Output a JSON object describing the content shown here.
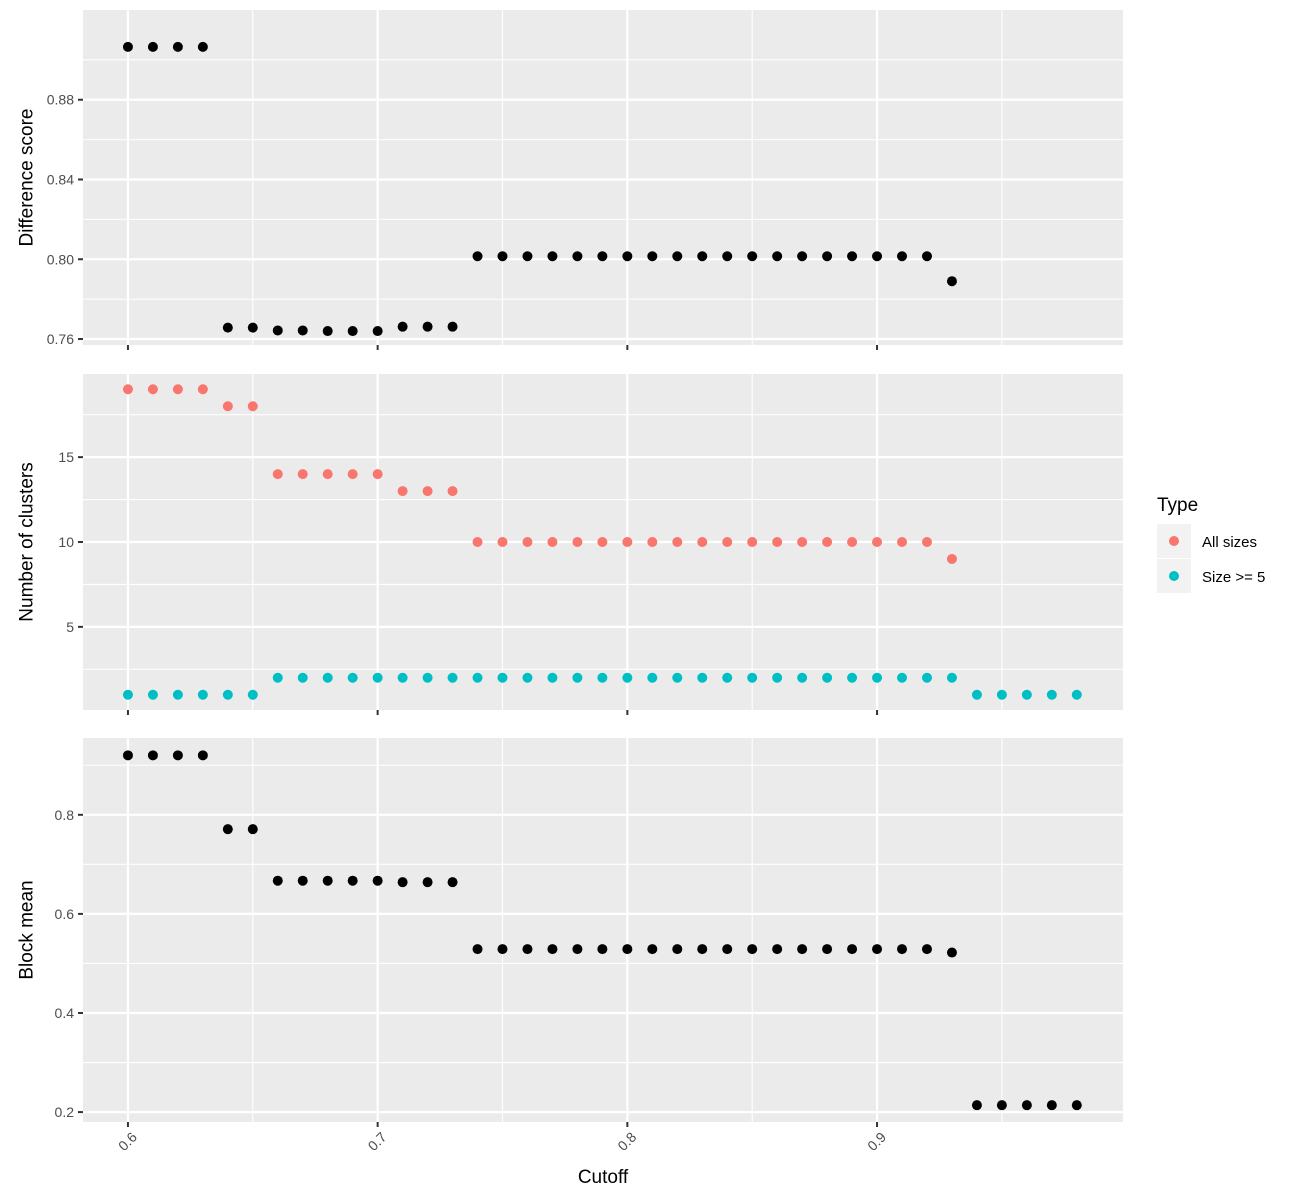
{
  "chart_data": [
    {
      "type": "scatter",
      "ylabel": "Difference score",
      "ylim": [
        0.757,
        0.925
      ],
      "yticks": [
        0.76,
        0.8,
        0.84,
        0.88
      ],
      "ytick_labels": [
        "0.76",
        "0.80",
        "0.84",
        "0.88"
      ],
      "grid": true,
      "series": [
        {
          "color": "#000000",
          "x": [
            0.6,
            0.61,
            0.62,
            0.63,
            0.64,
            0.65,
            0.66,
            0.67,
            0.68,
            0.69,
            0.7,
            0.71,
            0.72,
            0.73,
            0.74,
            0.75,
            0.76,
            0.77,
            0.78,
            0.79,
            0.8,
            0.81,
            0.82,
            0.83,
            0.84,
            0.85,
            0.86,
            0.87,
            0.88,
            0.89,
            0.9,
            0.91,
            0.92,
            0.93
          ],
          "y": [
            0.9065,
            0.9065,
            0.9065,
            0.9065,
            0.7657,
            0.7657,
            0.7643,
            0.7643,
            0.764,
            0.764,
            0.764,
            0.7662,
            0.7662,
            0.7662,
            0.8015,
            0.8015,
            0.8015,
            0.8015,
            0.8015,
            0.8015,
            0.8015,
            0.8015,
            0.8015,
            0.8015,
            0.8015,
            0.8015,
            0.8015,
            0.8015,
            0.8015,
            0.8015,
            0.8015,
            0.8015,
            0.8015,
            0.789
          ]
        }
      ]
    },
    {
      "type": "scatter",
      "ylabel": "Number of clusters",
      "ylim": [
        0.1,
        19.9
      ],
      "yticks": [
        5,
        10,
        15
      ],
      "ytick_labels": [
        "5",
        "10",
        "15"
      ],
      "grid": true,
      "legend": {
        "title": "Type",
        "position": "right"
      },
      "series": [
        {
          "name": "All sizes",
          "color": "#F8766D",
          "x": [
            0.6,
            0.61,
            0.62,
            0.63,
            0.64,
            0.65,
            0.66,
            0.67,
            0.68,
            0.69,
            0.7,
            0.71,
            0.72,
            0.73,
            0.74,
            0.75,
            0.76,
            0.77,
            0.78,
            0.79,
            0.8,
            0.81,
            0.82,
            0.83,
            0.84,
            0.85,
            0.86,
            0.87,
            0.88,
            0.89,
            0.9,
            0.91,
            0.92,
            0.93
          ],
          "y": [
            19,
            19,
            19,
            19,
            18,
            18,
            14,
            14,
            14,
            14,
            14,
            13,
            13,
            13,
            10,
            10,
            10,
            10,
            10,
            10,
            10,
            10,
            10,
            10,
            10,
            10,
            10,
            10,
            10,
            10,
            10,
            10,
            10,
            9
          ]
        },
        {
          "name": "Size >= 5",
          "color": "#00BFC4",
          "x": [
            0.6,
            0.61,
            0.62,
            0.63,
            0.64,
            0.65,
            0.66,
            0.67,
            0.68,
            0.69,
            0.7,
            0.71,
            0.72,
            0.73,
            0.74,
            0.75,
            0.76,
            0.77,
            0.78,
            0.79,
            0.8,
            0.81,
            0.82,
            0.83,
            0.84,
            0.85,
            0.86,
            0.87,
            0.88,
            0.89,
            0.9,
            0.91,
            0.92,
            0.93,
            0.94,
            0.95,
            0.96,
            0.97,
            0.98
          ],
          "y": [
            1,
            1,
            1,
            1,
            1,
            1,
            2,
            2,
            2,
            2,
            2,
            2,
            2,
            2,
            2,
            2,
            2,
            2,
            2,
            2,
            2,
            2,
            2,
            2,
            2,
            2,
            2,
            2,
            2,
            2,
            2,
            2,
            2,
            2,
            1,
            1,
            1,
            1,
            1
          ]
        }
      ]
    },
    {
      "type": "scatter",
      "ylabel": "Block mean",
      "xlabel": "Cutoff",
      "ylim": [
        0.18,
        0.955
      ],
      "yticks": [
        0.2,
        0.4,
        0.6,
        0.8
      ],
      "ytick_labels": [
        "0.2",
        "0.4",
        "0.6",
        "0.8"
      ],
      "grid": true,
      "series": [
        {
          "color": "#000000",
          "x": [
            0.6,
            0.61,
            0.62,
            0.63,
            0.64,
            0.65,
            0.66,
            0.67,
            0.68,
            0.69,
            0.7,
            0.71,
            0.72,
            0.73,
            0.74,
            0.75,
            0.76,
            0.77,
            0.78,
            0.79,
            0.8,
            0.81,
            0.82,
            0.83,
            0.84,
            0.85,
            0.86,
            0.87,
            0.88,
            0.89,
            0.9,
            0.91,
            0.92,
            0.93,
            0.94,
            0.95,
            0.96,
            0.97,
            0.98
          ],
          "y": [
            0.92,
            0.92,
            0.92,
            0.92,
            0.771,
            0.771,
            0.667,
            0.667,
            0.667,
            0.667,
            0.667,
            0.664,
            0.664,
            0.664,
            0.529,
            0.529,
            0.529,
            0.529,
            0.529,
            0.529,
            0.529,
            0.529,
            0.529,
            0.529,
            0.529,
            0.529,
            0.529,
            0.529,
            0.529,
            0.529,
            0.529,
            0.529,
            0.529,
            0.522,
            0.214,
            0.214,
            0.214,
            0.214,
            0.214
          ]
        }
      ]
    }
  ],
  "x_axis": {
    "xlim": [
      0.582,
      0.9985
    ],
    "ticks": [
      0.6,
      0.7,
      0.8,
      0.9
    ],
    "tick_labels": [
      "0.6",
      "0.7",
      "0.8",
      "0.9"
    ]
  }
}
